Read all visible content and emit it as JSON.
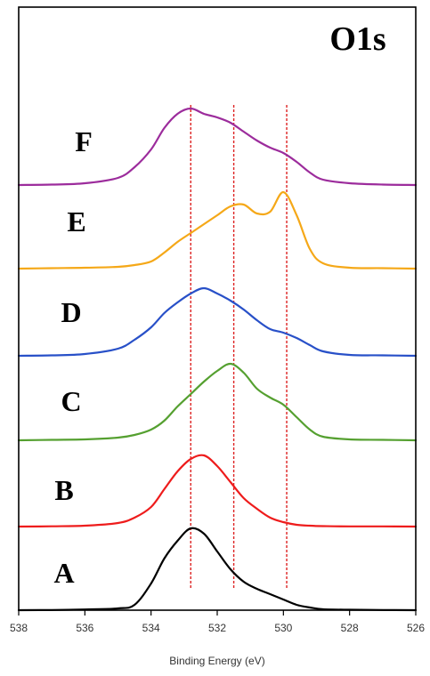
{
  "chart_data": {
    "type": "line",
    "title": "O1s",
    "xlabel": "Binding Energy (eV)",
    "ylabel": "",
    "xlim": [
      538,
      526
    ],
    "x_reversed": true,
    "x_ticks": [
      538,
      536,
      534,
      532,
      530,
      528,
      526
    ],
    "x_tick_labels": [
      "538",
      "536",
      "534",
      "532",
      "530",
      "528",
      "526"
    ],
    "y_ticks_shown": false,
    "grid": false,
    "reference_lines_eV": [
      532.8,
      531.5,
      529.9
    ],
    "reference_line_color": "#dd2222",
    "x": [
      538,
      537,
      536,
      535,
      534.5,
      534,
      533.6,
      533.2,
      532.8,
      532.4,
      532,
      531.6,
      531.2,
      530.8,
      530.4,
      530,
      529.6,
      529.2,
      528.8,
      528,
      527,
      526
    ],
    "series": [
      {
        "label": "A",
        "color": "#000000",
        "values": [
          0,
          0.2,
          0.8,
          2,
          6,
          30,
          58,
          78,
          92,
          86,
          66,
          46,
          32,
          24,
          18,
          12,
          6,
          3,
          1,
          0.5,
          0.2,
          0
        ]
      },
      {
        "label": "B",
        "color": "#ee1c1c",
        "values": [
          0,
          0.3,
          1,
          4,
          10,
          22,
          42,
          62,
          76,
          80,
          68,
          50,
          32,
          20,
          10,
          5,
          2,
          1,
          0.5,
          0.2,
          0.2,
          0
        ]
      },
      {
        "label": "C",
        "color": "#55a030",
        "values": [
          0,
          0.5,
          1,
          3,
          6,
          12,
          22,
          38,
          52,
          66,
          78,
          86,
          76,
          58,
          48,
          40,
          26,
          12,
          4,
          1,
          0.5,
          0
        ]
      },
      {
        "label": "D",
        "color": "#2850c8",
        "values": [
          0,
          0.5,
          2,
          8,
          18,
          32,
          48,
          60,
          70,
          76,
          70,
          62,
          52,
          40,
          30,
          26,
          20,
          12,
          5,
          1,
          0.5,
          0
        ]
      },
      {
        "label": "E",
        "color": "#f5a818",
        "values": [
          0,
          0.5,
          1,
          2,
          4,
          8,
          18,
          30,
          40,
          50,
          60,
          70,
          72,
          62,
          64,
          86,
          60,
          22,
          6,
          1,
          0.5,
          0
        ]
      },
      {
        "label": "F",
        "color": "#9c2c9c",
        "values": [
          0,
          0.5,
          2,
          8,
          20,
          40,
          64,
          80,
          86,
          80,
          76,
          70,
          60,
          50,
          42,
          36,
          26,
          14,
          6,
          2,
          0.5,
          0
        ]
      }
    ]
  }
}
